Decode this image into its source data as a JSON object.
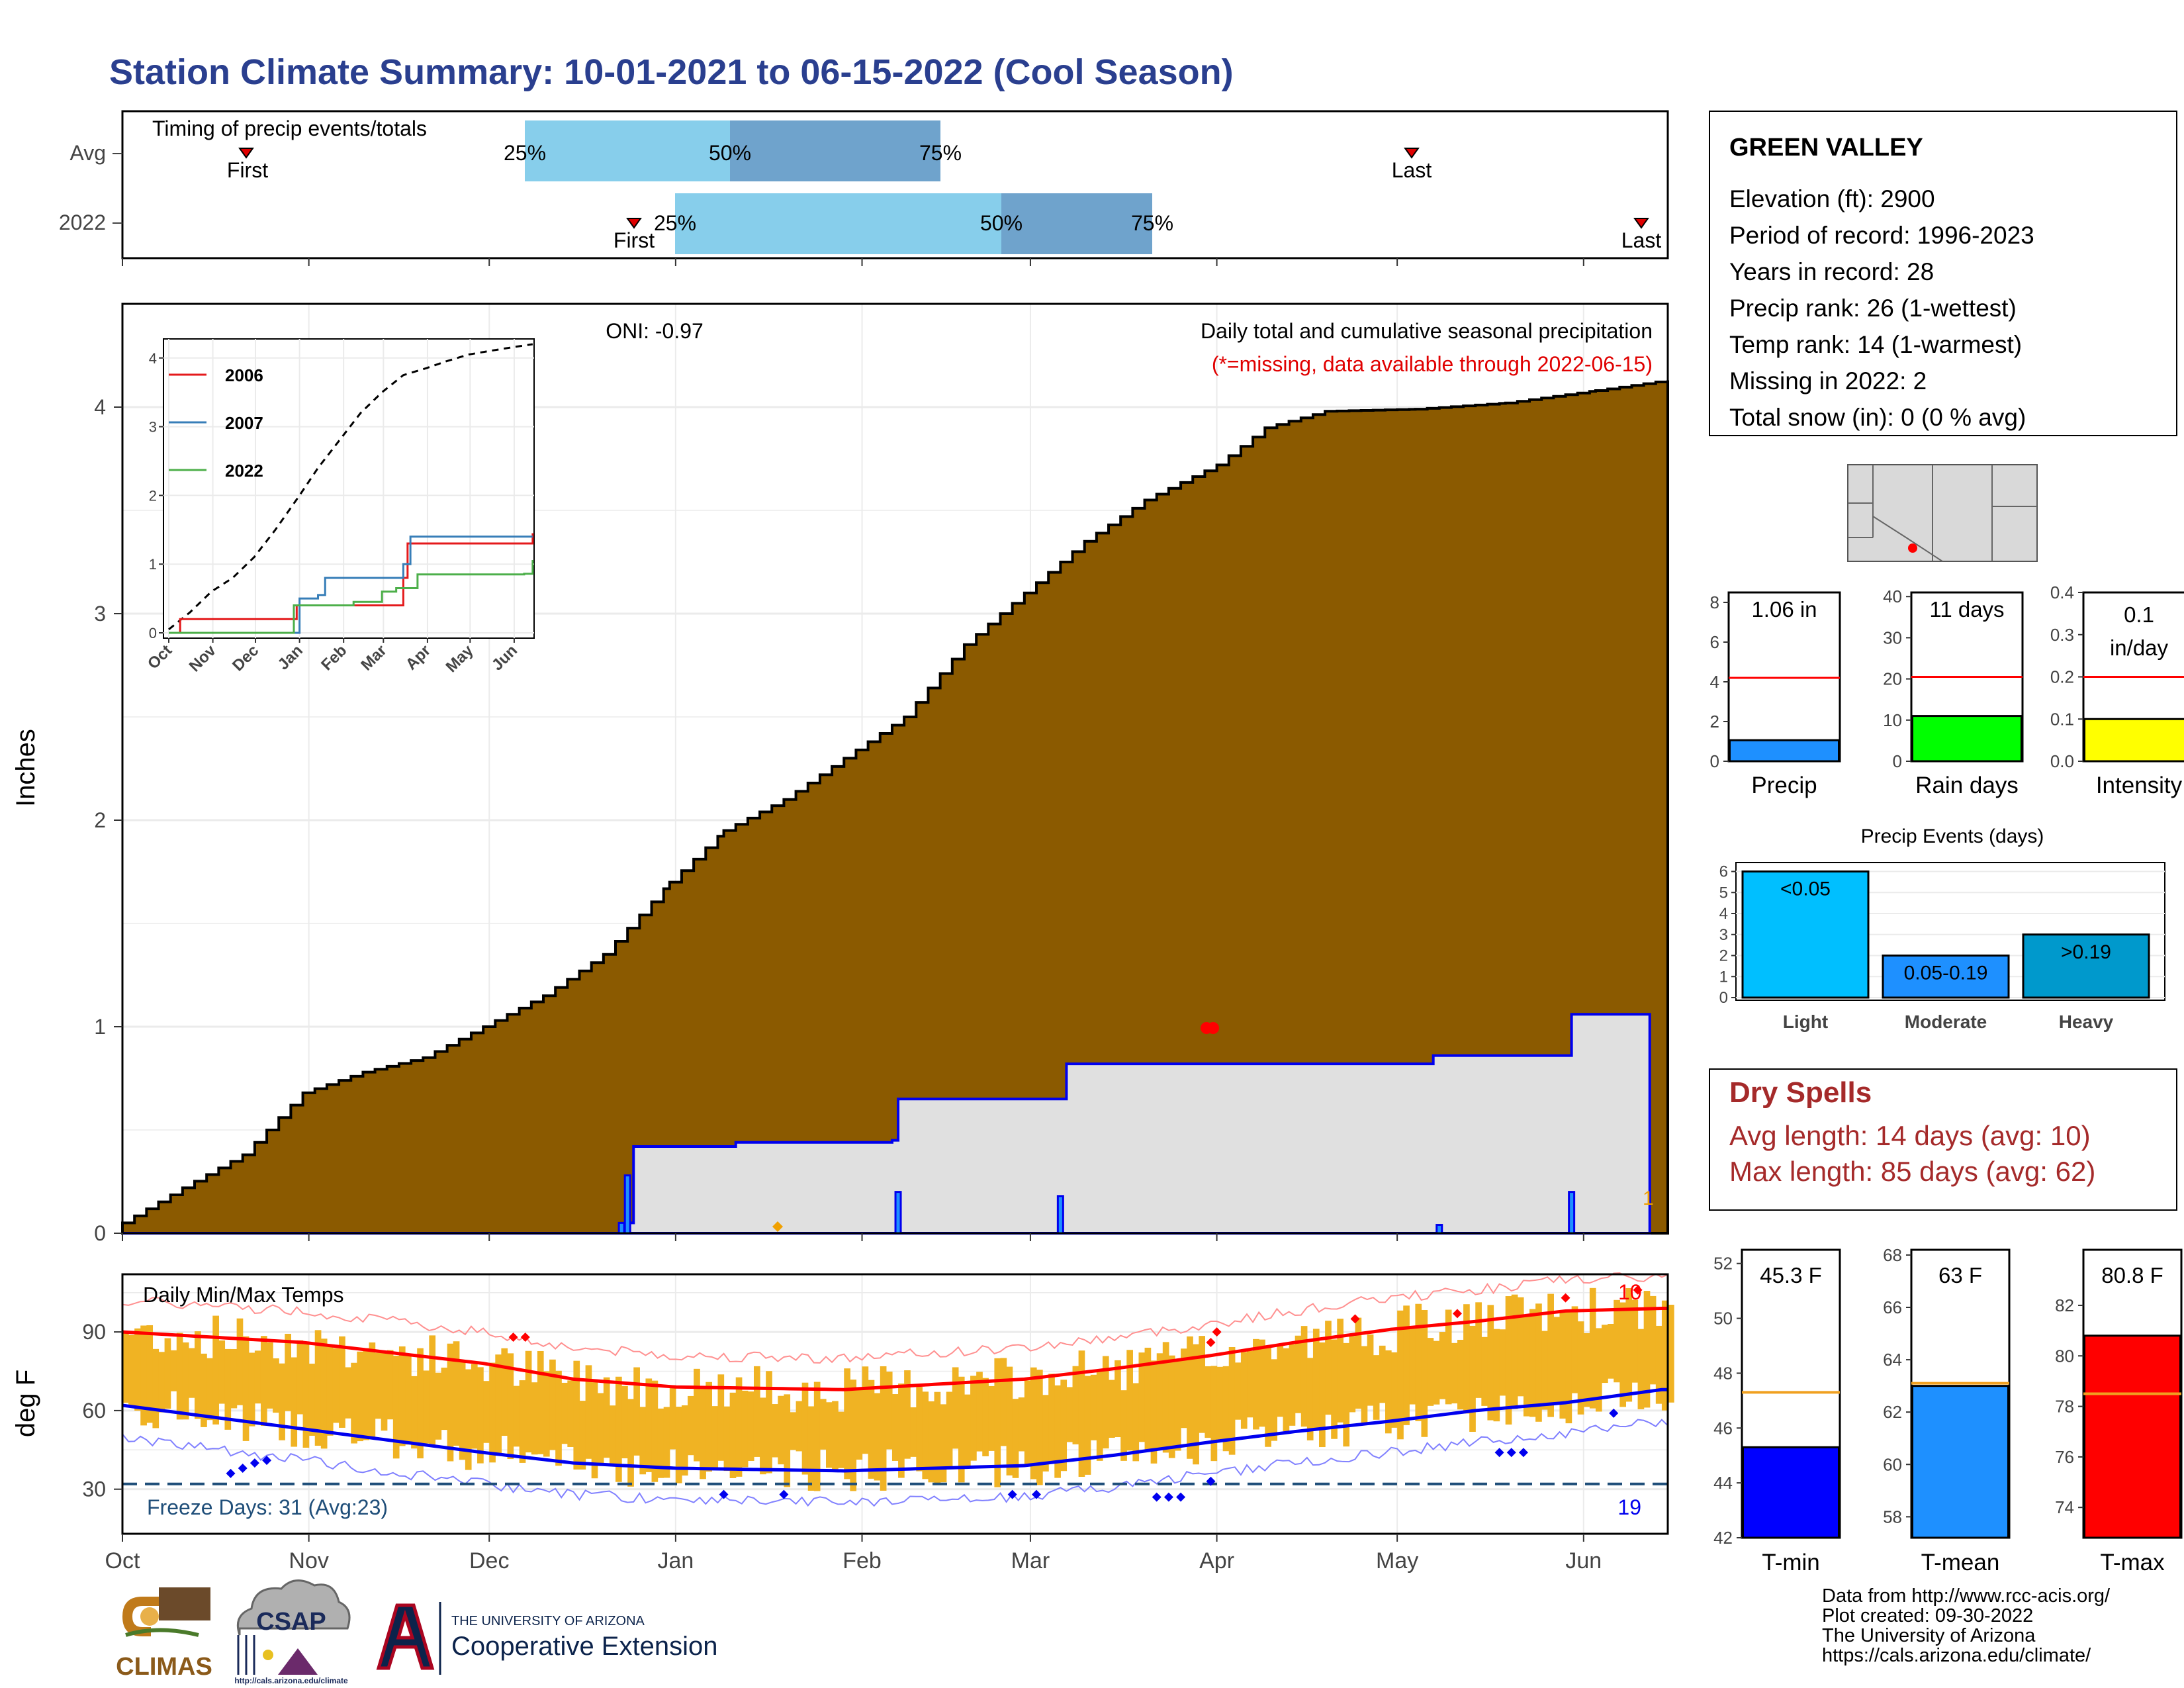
{
  "title": "Station Climate Summary: 10-01-2021 to 06-15-2022 (Cool Season)",
  "colors": {
    "title": "#2a3f8f",
    "precip_fill": "#8b5a00",
    "current_fill": "#e0e0e0",
    "current_line": "#0000ee",
    "quartile_light": "#87ceeb",
    "quartile_dark": "#6fa3cc",
    "tmax": "#ff0000",
    "tmin": "#0000ee",
    "range_bar": "#f0b323",
    "dry_spell": "#a52a2a"
  },
  "timing_panel": {
    "label": "Timing of precip events/totals",
    "rows": [
      "Avg",
      "2022"
    ],
    "pct_labels": [
      "25%",
      "50%",
      "75%"
    ],
    "first_label": "First",
    "last_label": "Last"
  },
  "station": {
    "name": "GREEN VALLEY",
    "lines": [
      "Elevation (ft): 2900",
      "Period of record: 1996-2023",
      "Years in record: 28",
      "Precip rank: 26 (1-wettest)",
      "Temp rank: 14 (1-warmest)",
      "Missing in 2022: 2",
      "Total snow (in): 0 (0 % avg)"
    ]
  },
  "precip_main": {
    "ylabel": "Inches",
    "y_ticks": [
      "0",
      "1",
      "2",
      "3",
      "4"
    ],
    "oni": "ONI: -0.97",
    "caption": "Daily total and cumulative seasonal precipitation",
    "missing_note": "(*=missing, data available through 2022-06-15)",
    "end_marker": "1"
  },
  "inset": {
    "y_ticks": [
      "0",
      "1",
      "2",
      "3",
      "4"
    ],
    "x_ticks": [
      "Oct",
      "Nov",
      "Dec",
      "Jan",
      "Feb",
      "Mar",
      "Apr",
      "May",
      "Jun"
    ],
    "legend": [
      {
        "name": "2006",
        "color": "#e41a1c"
      },
      {
        "name": "2007",
        "color": "#377eb8"
      },
      {
        "name": "2022",
        "color": "#4daf4a"
      }
    ]
  },
  "x_months": [
    "Oct",
    "Nov",
    "Dec",
    "Jan",
    "Feb",
    "Mar",
    "Apr",
    "May",
    "Jun"
  ],
  "temp_panel": {
    "title": "Daily Min/Max Temps",
    "ylabel": "deg F",
    "y_ticks": [
      "30",
      "60",
      "90"
    ],
    "freeze_text": "Freeze Days: 31 (Avg:23)",
    "freeze_count_end": "19",
    "hot_count": "10"
  },
  "mini_bars": [
    {
      "label": "Precip",
      "value_label": "1.06 in",
      "ticks": [
        "0",
        "2",
        "4",
        "6",
        "8"
      ],
      "value": 1.06,
      "avg": 4.2,
      "max": 8.5,
      "color": "#1e90ff"
    },
    {
      "label": "Rain days",
      "value_label": "11 days",
      "ticks": [
        "0",
        "10",
        "20",
        "30",
        "40"
      ],
      "value": 11,
      "avg": 20.5,
      "max": 41,
      "color": "#00ff00"
    },
    {
      "label": "Intensity",
      "value_label": "0.1 in/day",
      "value_label_1": "0.1",
      "value_label_2": "in/day",
      "ticks": [
        "0.0",
        "0.1",
        "0.2",
        "0.3",
        "0.4"
      ],
      "value": 0.1,
      "avg": 0.2,
      "max": 0.4,
      "color": "#ffff00"
    }
  ],
  "precip_events": {
    "title": "Precip Events (days)",
    "ticks": [
      "0",
      "1",
      "2",
      "3",
      "4",
      "5",
      "6"
    ],
    "bars": [
      {
        "category": "Light",
        "label": "<0.05",
        "value": 6,
        "color": "#00bfff"
      },
      {
        "category": "Moderate",
        "label": "0.05-0.19",
        "value": 2,
        "color": "#1e90ff"
      },
      {
        "category": "Heavy",
        "label": ">0.19",
        "value": 3,
        "color": "#0099cc"
      }
    ]
  },
  "dry_spells": {
    "title": "Dry Spells",
    "lines": [
      "Avg length: 14 days (avg: 10)",
      "Max length: 85 days (avg: 62)"
    ]
  },
  "temp_bars": [
    {
      "label": "T-min",
      "value_label": "45.3 F",
      "ticks": [
        "42",
        "44",
        "46",
        "48",
        "50",
        "52"
      ],
      "min": 42,
      "max": 52.5,
      "value": 45.3,
      "avg": 47.3,
      "color": "#0000ff"
    },
    {
      "label": "T-mean",
      "value_label": "63 F",
      "ticks": [
        "58",
        "60",
        "62",
        "64",
        "66",
        "68"
      ],
      "min": 57.2,
      "max": 68.2,
      "value": 63,
      "avg": 63.1,
      "color": "#1e90ff"
    },
    {
      "label": "T-max",
      "value_label": "80.8 F",
      "ticks": [
        "74",
        "76",
        "78",
        "80",
        "82"
      ],
      "min": 72.8,
      "max": 84.2,
      "value": 80.8,
      "avg": 78.5,
      "color": "#ff0000"
    }
  ],
  "footer": {
    "lines": [
      "Data from http://www.rcc-acis.org/",
      "Plot created: 09-30-2022",
      "The University of Arizona",
      "https://cals.arizona.edu/climate/"
    ],
    "logo1": "CLIMAS",
    "logo2": "CSAP",
    "logo2_url": "http://cals.arizona.edu/climate",
    "ua_small": "THE UNIVERSITY OF ARIZONA",
    "ua_big": "Cooperative Extension"
  },
  "chart_data": [
    {
      "type": "area",
      "name_title": "Daily total and cumulative seasonal precipitation",
      "x_unit": "day of season (Oct 1 = 0)",
      "ylim": [
        0,
        4.5
      ],
      "cumulative_avg": {
        "x": [
          0,
          10,
          20,
          30,
          40,
          50,
          60,
          70,
          80,
          91,
          100,
          110,
          120,
          130,
          140,
          150,
          160,
          170,
          182,
          190,
          200,
          215,
          230,
          245,
          257
        ],
        "y": [
          0.05,
          0.22,
          0.38,
          0.68,
          0.78,
          0.85,
          1.0,
          1.15,
          1.35,
          1.7,
          1.95,
          2.1,
          2.3,
          2.5,
          2.85,
          3.1,
          3.35,
          3.55,
          3.72,
          3.9,
          3.98,
          3.99,
          4.02,
          4.08,
          4.13
        ]
      },
      "cumulative_2022": {
        "x": [
          0,
          81,
          84,
          85,
          95,
          102,
          128,
          129,
          156,
          157,
          218,
          219,
          240,
          241,
          254
        ],
        "y": [
          0,
          0,
          0.05,
          0.42,
          0.42,
          0.44,
          0.45,
          0.65,
          0.65,
          0.82,
          0.86,
          0.86,
          0.86,
          1.06,
          1.06
        ]
      },
      "daily_2022": {
        "x": [
          83,
          84,
          129,
          156,
          219,
          241
        ],
        "y": [
          0.05,
          0.28,
          0.2,
          0.18,
          0.04,
          0.2
        ]
      }
    },
    {
      "type": "line",
      "title": "Daily Min/Max Temps",
      "x_unit": "day of season (Oct 1 = 0)",
      "ylabel": "deg F",
      "ylim": [
        13,
        112
      ],
      "series": [
        {
          "name": "avg_tmax",
          "x": [
            0,
            30,
            60,
            75,
            92,
            120,
            150,
            165,
            181,
            195,
            211,
            225,
            240,
            256
          ],
          "y": [
            90,
            86,
            78,
            72,
            69,
            68,
            72,
            76,
            81,
            86,
            91,
            94,
            98,
            99
          ]
        },
        {
          "name": "avg_tmin",
          "x": [
            0,
            30,
            60,
            75,
            92,
            120,
            150,
            165,
            181,
            195,
            211,
            225,
            240,
            256
          ],
          "y": [
            62,
            53,
            44,
            40,
            38,
            37,
            39,
            43,
            48,
            52,
            56,
            60,
            63,
            68
          ]
        }
      ]
    },
    {
      "type": "line",
      "title": "Cumulative precipitation (inset)",
      "ylim": [
        0,
        4.2
      ],
      "series": [
        {
          "name": "avg",
          "x": [
            0,
            15,
            30,
            45,
            60,
            75,
            92,
            105,
            120,
            135,
            150,
            165,
            181,
            195,
            211,
            225,
            240,
            256
          ],
          "y": [
            0.05,
            0.3,
            0.6,
            0.8,
            1.1,
            1.5,
            2.0,
            2.4,
            2.8,
            3.2,
            3.5,
            3.75,
            3.85,
            3.95,
            4.05,
            4.1,
            4.15,
            4.2
          ]
        },
        {
          "name": "2006",
          "x": [
            0,
            8,
            88,
            90,
            165,
            168,
            225,
            256
          ],
          "y": [
            0,
            0.2,
            0.2,
            0.4,
            0.8,
            1.3,
            1.3,
            1.45
          ]
        },
        {
          "name": "2007",
          "x": [
            0,
            88,
            92,
            105,
            110,
            145,
            165,
            170,
            256
          ],
          "y": [
            0,
            0,
            0.5,
            0.55,
            0.8,
            0.8,
            1.0,
            1.4,
            1.4
          ]
        },
        {
          "name": "2022",
          "x": [
            0,
            85,
            88,
            130,
            150,
            160,
            175,
            250,
            256
          ],
          "y": [
            0,
            0,
            0.4,
            0.45,
            0.6,
            0.65,
            0.85,
            0.86,
            1.06
          ]
        }
      ]
    }
  ]
}
